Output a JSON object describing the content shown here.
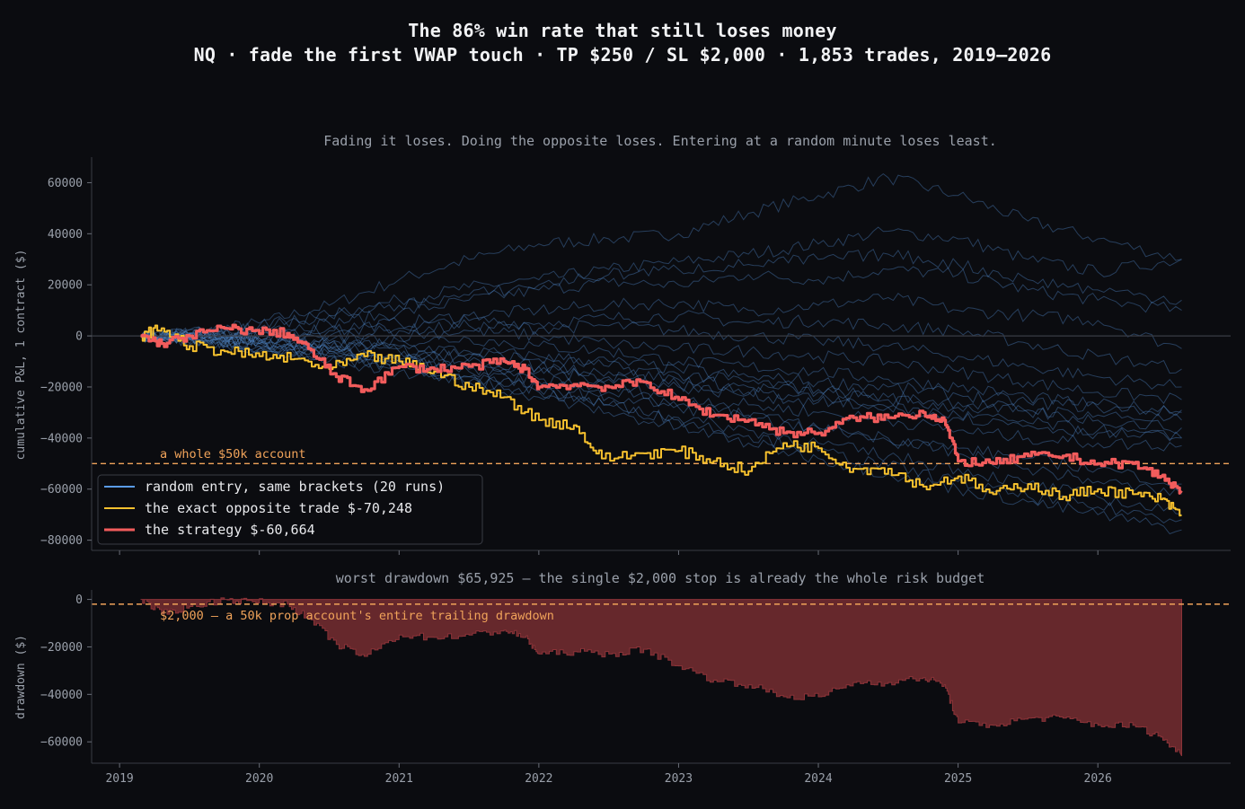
{
  "header": {
    "title": "The 86% win rate that still loses money",
    "subtitle": "NQ · fade the first VWAP touch · TP $250 / SL $2,000 · 1,853 trades, 2019–2026"
  },
  "colors": {
    "background": "#0b0c10",
    "random": "#4f86c6",
    "opposite": "#f7c12e",
    "strategy": "#f25c5c",
    "threshold": "#f0a35a",
    "drawdown_fill": "#6b2a2e"
  },
  "chart_data": [
    {
      "type": "line",
      "title": "Fading it loses. Doing the opposite loses. Entering at a random minute loses least.",
      "xlabel": "",
      "ylabel": "cumulative P&L, 1 contract ($)",
      "xlim": [
        2018.8,
        2026.95
      ],
      "ylim": [
        -84000,
        70000
      ],
      "yticks": [
        60000,
        40000,
        20000,
        0,
        -20000,
        -40000,
        -60000,
        -80000
      ],
      "xticks": [
        2019,
        2020,
        2021,
        2022,
        2023,
        2024,
        2025,
        2026
      ],
      "grid": false,
      "legend_position": "lower-left",
      "annotations": [
        {
          "text": "a whole $50k account",
          "y": -50000
        }
      ],
      "series": [
        {
          "name": "random entry, same brackets (20 runs)",
          "count": 20,
          "x": [
            2019.15,
            2019.6,
            2020.0,
            2020.5,
            2021.0,
            2021.5,
            2022.0,
            2022.5,
            2023.0,
            2023.5,
            2024.0,
            2024.5,
            2025.0,
            2025.5,
            2026.0,
            2026.6
          ],
          "runs": [
            [
              0,
              2000,
              5000,
              12000,
              22000,
              30000,
              36000,
              38000,
              40000,
              48000,
              55000,
              62000,
              55000,
              45000,
              38000,
              30000
            ],
            [
              0,
              1000,
              3000,
              8000,
              14000,
              19000,
              22000,
              26000,
              29000,
              32000,
              36000,
              41000,
              38000,
              30000,
              25000,
              30000
            ],
            [
              0,
              0,
              2000,
              5000,
              9000,
              14000,
              18000,
              21000,
              20000,
              24000,
              22000,
              26000,
              24000,
              18000,
              14000,
              10000
            ],
            [
              0,
              -1000,
              1000,
              3000,
              5000,
              8000,
              10000,
              12000,
              13000,
              10000,
              12000,
              15000,
              10000,
              8000,
              6000,
              -5000
            ],
            [
              0,
              1000,
              0,
              2000,
              3000,
              6000,
              5000,
              7000,
              8000,
              5000,
              6000,
              4000,
              2000,
              -3000,
              -8000,
              -13000
            ],
            [
              0,
              -2000,
              -1000,
              0,
              2000,
              4000,
              3000,
              4000,
              2000,
              0,
              -2000,
              -4000,
              -8000,
              -12000,
              -16000,
              -20000
            ],
            [
              0,
              0,
              -2000,
              -2000,
              0,
              2000,
              0,
              -3000,
              -5000,
              -6000,
              -8000,
              -10000,
              -14000,
              -18000,
              -22000,
              -25000
            ],
            [
              0,
              -1000,
              -3000,
              -4000,
              -2000,
              -1000,
              -4000,
              -6000,
              -10000,
              -12000,
              -14000,
              -17000,
              -20000,
              -24000,
              -27000,
              -29000
            ],
            [
              0,
              -2000,
              -3000,
              -5000,
              -4000,
              -6000,
              -8000,
              -10000,
              -13000,
              -16000,
              -18000,
              -20000,
              -23000,
              -26000,
              -28000,
              -30000
            ],
            [
              0,
              1000,
              -2000,
              -3000,
              -5000,
              -7000,
              -9000,
              -12000,
              -15000,
              -18000,
              -21000,
              -24000,
              -26000,
              -29000,
              -31000,
              -33000
            ],
            [
              0,
              -1000,
              -4000,
              -6000,
              -8000,
              -10000,
              -12000,
              -14000,
              -17000,
              -20000,
              -22000,
              -25000,
              -28000,
              -30000,
              -33000,
              -36000
            ],
            [
              0,
              -2000,
              -5000,
              -7000,
              -9000,
              -12000,
              -14000,
              -17000,
              -20000,
              -23000,
              -26000,
              -28000,
              -31000,
              -34000,
              -37000,
              -40000
            ],
            [
              0,
              0,
              -3000,
              -5000,
              -10000,
              -14000,
              -17000,
              -20000,
              -24000,
              -27000,
              -30000,
              -33000,
              -37000,
              -40000,
              -42000,
              -43000
            ],
            [
              0,
              -1000,
              -5000,
              -8000,
              -12000,
              -16000,
              -20000,
              -24000,
              -28000,
              -32000,
              -36000,
              -40000,
              -44000,
              -48000,
              -52000,
              -58000
            ],
            [
              0,
              -2000,
              -6000,
              -10000,
              -14000,
              -18000,
              -22000,
              -27000,
              -32000,
              -37000,
              -42000,
              -47000,
              -52000,
              -58000,
              -63000,
              -70000
            ],
            [
              0,
              -1000,
              -4000,
              -8000,
              -13000,
              -18000,
              -24000,
              -30000,
              -36000,
              -42000,
              -48000,
              -54000,
              -60000,
              -65000,
              -70000,
              -76000
            ],
            [
              0,
              0,
              -2000,
              -6000,
              -11000,
              -16000,
              -21000,
              -27000,
              -33000,
              -39000,
              -45000,
              -51000,
              -57000,
              -63000,
              -67000,
              -72000
            ],
            [
              0,
              -2000,
              -3000,
              -6000,
              -9000,
              -13000,
              -18000,
              -22000,
              -27000,
              -31000,
              -36000,
              -41000,
              -46000,
              -52000,
              -57000,
              -62000
            ],
            [
              0,
              2000,
              4000,
              8000,
              12000,
              16000,
              20000,
              24000,
              26000,
              28000,
              30000,
              32000,
              28000,
              22000,
              18000,
              14000
            ],
            [
              0,
              -1000,
              -1000,
              -3000,
              -6000,
              -9000,
              -12000,
              -16000,
              -19000,
              -22000,
              -25000,
              -28000,
              -32000,
              -35000,
              -38000,
              -40000
            ]
          ]
        },
        {
          "name": "the exact opposite trade  $-70,248",
          "x": [
            2019.15,
            2019.3,
            2019.5,
            2019.75,
            2020.0,
            2020.25,
            2020.5,
            2020.75,
            2021.0,
            2021.25,
            2021.5,
            2021.75,
            2022.0,
            2022.25,
            2022.45,
            2022.75,
            2023.0,
            2023.25,
            2023.5,
            2023.75,
            2024.0,
            2024.25,
            2024.5,
            2024.75,
            2025.0,
            2025.25,
            2025.5,
            2025.75,
            2026.0,
            2026.25,
            2026.45,
            2026.6
          ],
          "values": [
            0,
            3000,
            -4000,
            -6000,
            -8000,
            -9000,
            -13000,
            -8000,
            -10000,
            -14000,
            -20000,
            -24000,
            -33000,
            -35000,
            -48000,
            -46000,
            -45000,
            -49000,
            -53000,
            -42000,
            -44000,
            -52000,
            -52000,
            -59000,
            -55000,
            -62000,
            -58000,
            -63000,
            -60000,
            -62000,
            -64000,
            -70248
          ]
        },
        {
          "name": "the strategy  $-60,664",
          "x": [
            2019.15,
            2019.3,
            2019.5,
            2019.75,
            2019.95,
            2020.2,
            2020.35,
            2020.55,
            2020.75,
            2021.0,
            2021.25,
            2021.5,
            2021.75,
            2021.9,
            2022.0,
            2022.25,
            2022.5,
            2022.75,
            2023.0,
            2023.25,
            2023.5,
            2023.75,
            2024.0,
            2024.25,
            2024.5,
            2024.75,
            2024.9,
            2025.0,
            2025.25,
            2025.5,
            2025.75,
            2026.0,
            2026.25,
            2026.45,
            2026.6
          ],
          "values": [
            0,
            -3000,
            0,
            3000,
            2000,
            1000,
            -5000,
            -16000,
            -21000,
            -12000,
            -13000,
            -12000,
            -10000,
            -13000,
            -20000,
            -19000,
            -20000,
            -18000,
            -25000,
            -31000,
            -33000,
            -38000,
            -38000,
            -32000,
            -32000,
            -30000,
            -33000,
            -49000,
            -50000,
            -47000,
            -47000,
            -50000,
            -50000,
            -55000,
            -60664
          ]
        }
      ]
    },
    {
      "type": "area",
      "title": "worst drawdown $65,925 — the single $2,000 stop is already the whole risk budget",
      "xlabel": "",
      "ylabel": "drawdown ($)",
      "xlim": [
        2018.8,
        2026.95
      ],
      "ylim": [
        -69000,
        4000
      ],
      "yticks": [
        0,
        -20000,
        -40000,
        -60000
      ],
      "xticks": [
        2019,
        2020,
        2021,
        2022,
        2023,
        2024,
        2025,
        2026
      ],
      "annotations": [
        {
          "text": "$2,000 — a 50k prop account's entire trailing drawdown",
          "y": -2000
        }
      ],
      "series": [
        {
          "name": "drawdown",
          "x": [
            2019.15,
            2019.3,
            2019.5,
            2019.75,
            2019.95,
            2020.2,
            2020.35,
            2020.55,
            2020.75,
            2021.0,
            2021.25,
            2021.5,
            2021.75,
            2021.9,
            2022.0,
            2022.25,
            2022.5,
            2022.75,
            2023.0,
            2023.25,
            2023.5,
            2023.75,
            2024.0,
            2024.25,
            2024.5,
            2024.75,
            2024.9,
            2025.0,
            2025.25,
            2025.5,
            2025.75,
            2026.0,
            2026.25,
            2026.45,
            2026.6
          ],
          "values": [
            0,
            -6000,
            -3000,
            0,
            -1000,
            -2000,
            -8000,
            -19000,
            -24000,
            -15000,
            -16000,
            -15000,
            -13000,
            -16000,
            -23000,
            -22000,
            -23000,
            -21000,
            -28000,
            -34000,
            -36000,
            -41000,
            -41000,
            -35000,
            -35000,
            -33000,
            -36000,
            -52000,
            -53000,
            -50000,
            -50000,
            -53000,
            -53000,
            -58000,
            -65925
          ]
        }
      ]
    }
  ],
  "legend": {
    "random": "random entry, same brackets (20 runs)",
    "opposite": "the exact opposite trade  $-70,248",
    "strategy": "the strategy  $-60,664"
  },
  "axis_labels": {
    "top_y": "cumulative P&L, 1 contract ($)",
    "bottom_y": "drawdown ($)"
  },
  "tick_labels": {
    "top_y": [
      "60000",
      "40000",
      "20000",
      "0",
      "−20000",
      "−40000",
      "−60000",
      "−80000"
    ],
    "bottom_y": [
      "0",
      "−20000",
      "−40000",
      "−60000"
    ],
    "x": [
      "2019",
      "2020",
      "2021",
      "2022",
      "2023",
      "2024",
      "2025",
      "2026"
    ]
  },
  "annotations": {
    "account_line": "a whole $50k account",
    "prop_line": "$2,000 — a 50k prop account's entire trailing drawdown"
  },
  "panel_titles": {
    "top": "Fading it loses. Doing the opposite loses. Entering at a random minute loses least.",
    "bottom": "worst drawdown $65,925 — the single $2,000 stop is already the whole risk budget"
  }
}
